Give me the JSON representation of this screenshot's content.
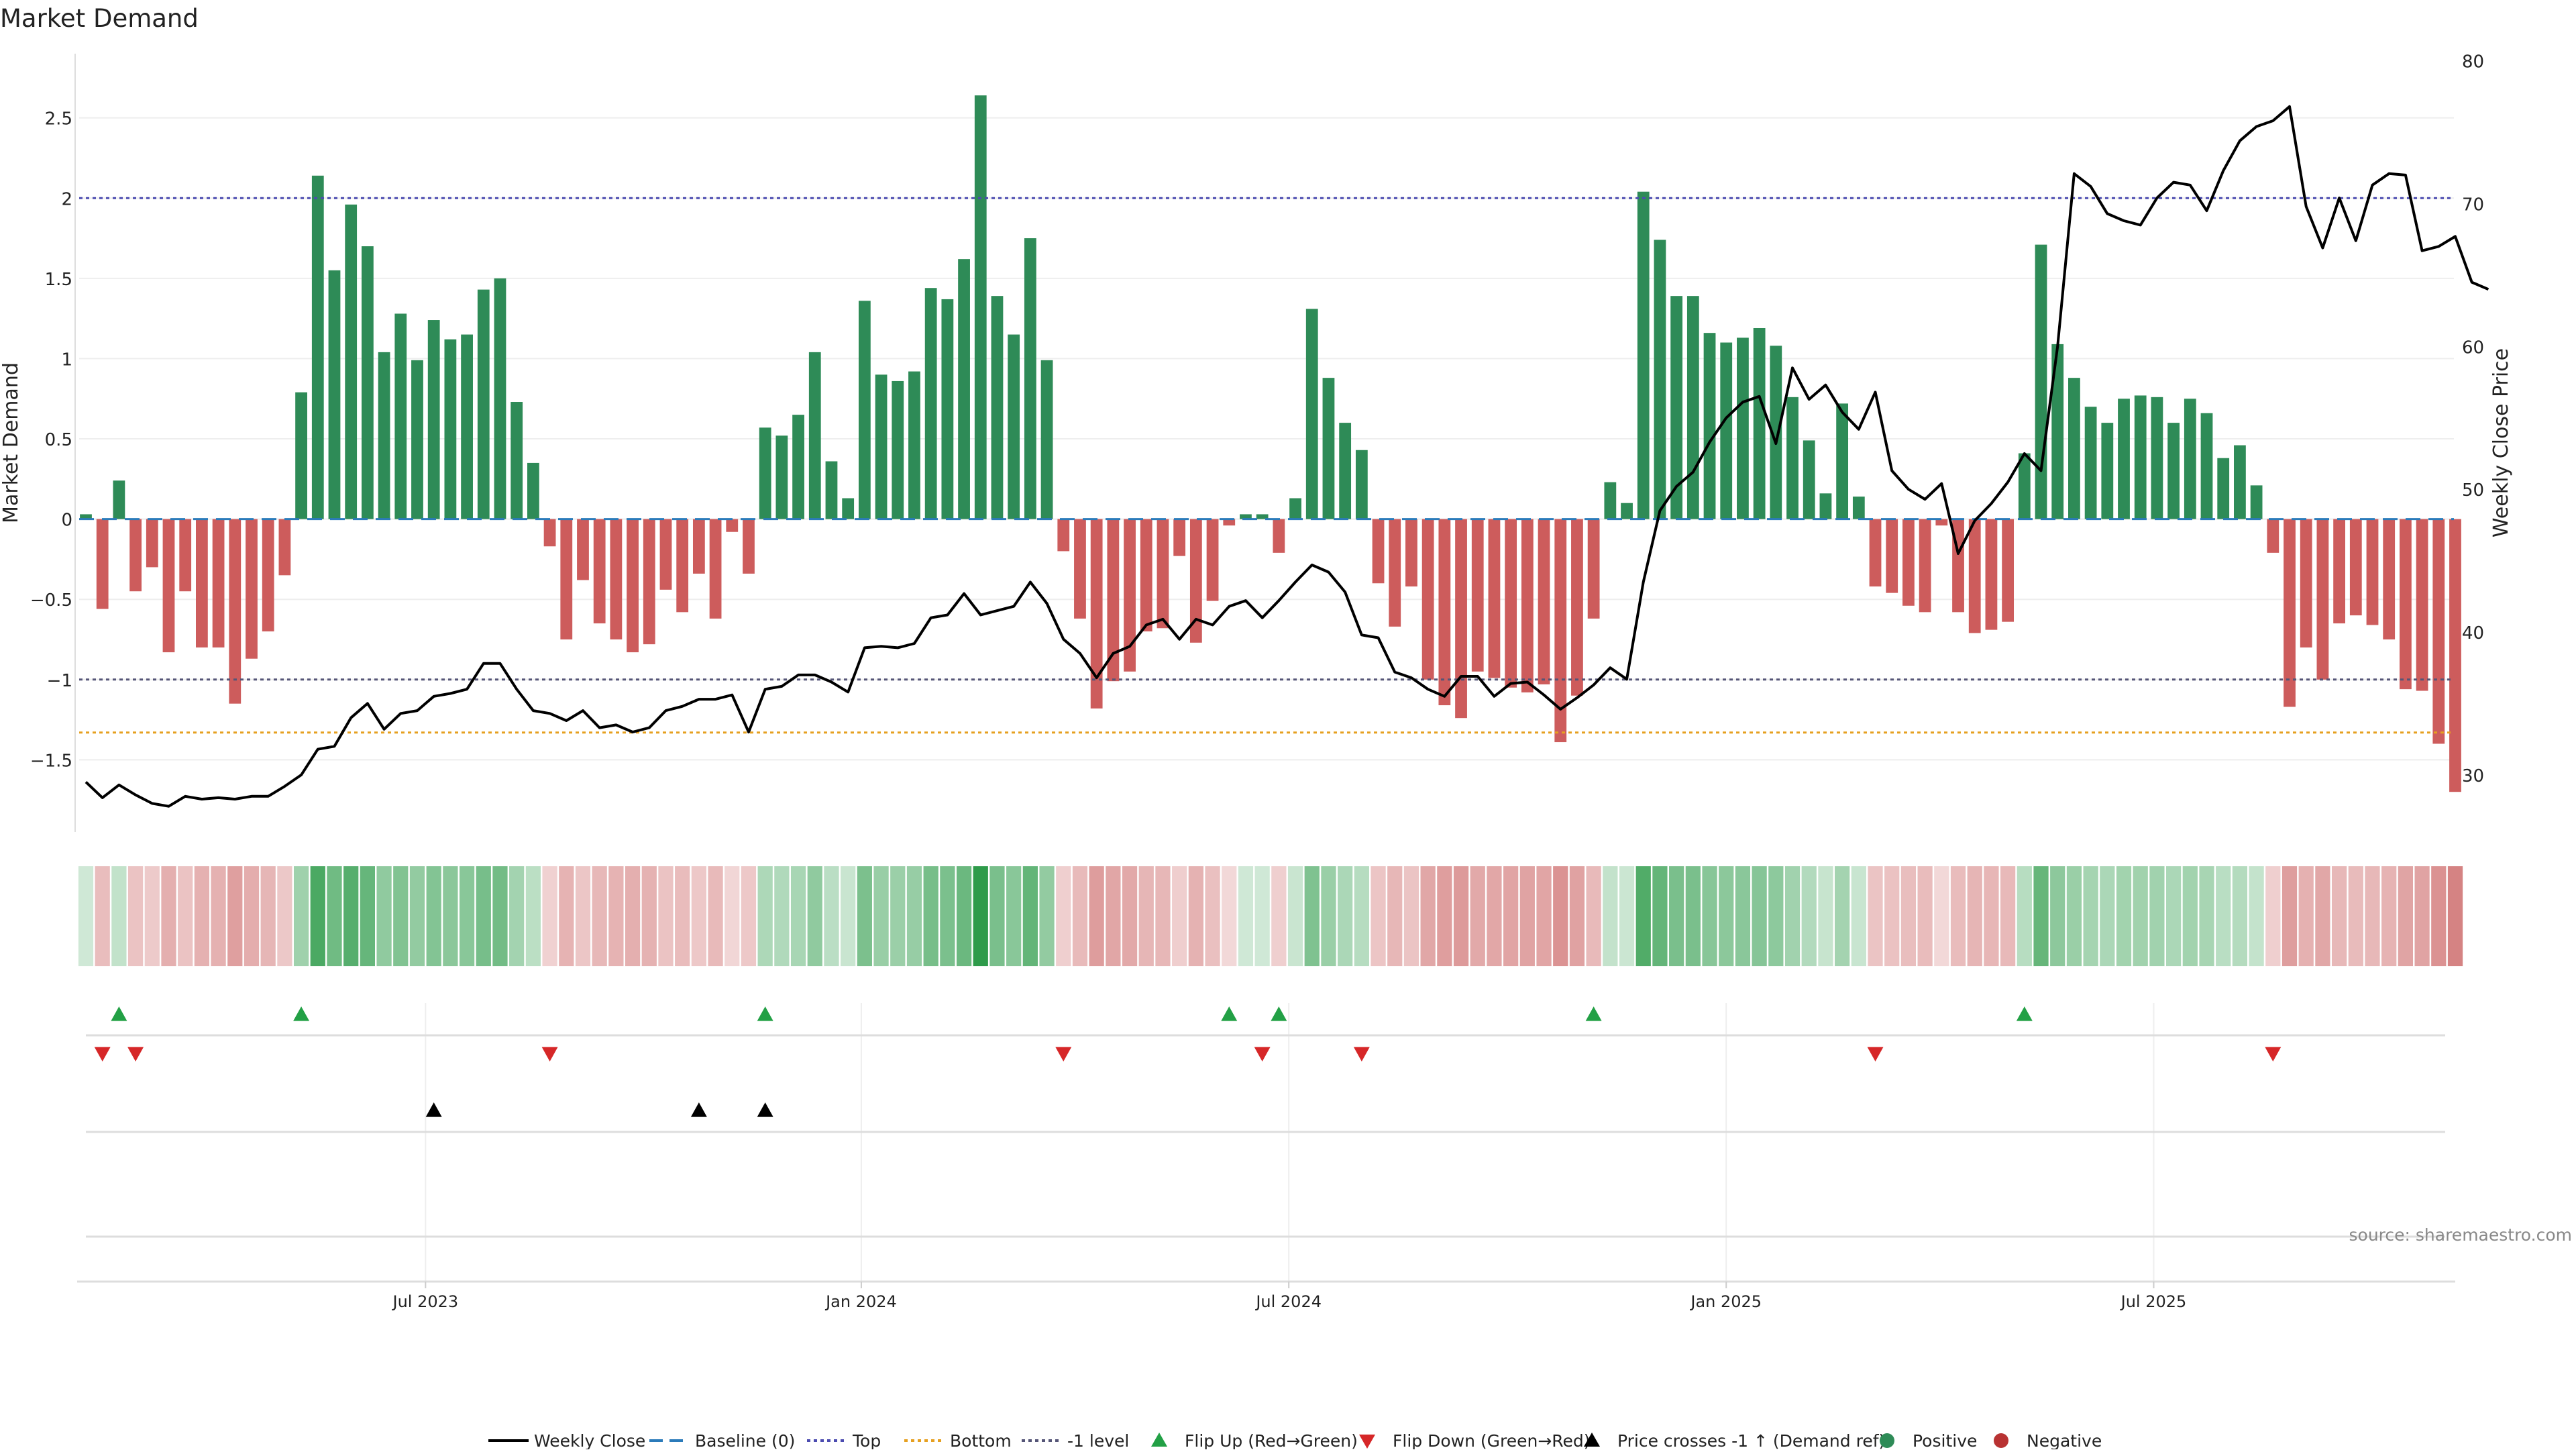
{
  "chart_data": {
    "type": "bar",
    "title": "Market Demand",
    "ylabel_left": "Market Demand",
    "ylabel_right": "Weekly Close Price",
    "source_note": "source: sharemaestro.com",
    "y_left_range": [
      -1.95,
      2.9
    ],
    "y_right_range": [
      26,
      80.5
    ],
    "y_left_ticks": [
      {
        "v": 2.5,
        "label": "2.5"
      },
      {
        "v": 2,
        "label": "2"
      },
      {
        "v": 1.5,
        "label": "1.5"
      },
      {
        "v": 1,
        "label": "1"
      },
      {
        "v": 0.5,
        "label": "0.5"
      },
      {
        "v": 0,
        "label": "0"
      },
      {
        "v": -0.5,
        "label": "−0.5"
      },
      {
        "v": -1,
        "label": "−1"
      },
      {
        "v": -1.5,
        "label": "−1.5"
      }
    ],
    "y_right_ticks": [
      {
        "v": 80,
        "label": "80"
      },
      {
        "v": 70,
        "label": "70"
      },
      {
        "v": 60,
        "label": "60"
      },
      {
        "v": 50,
        "label": "50"
      },
      {
        "v": 40,
        "label": "40"
      },
      {
        "v": 30,
        "label": "30"
      }
    ],
    "x_ticks": [
      {
        "i": 20.5,
        "label": "Jul 2023"
      },
      {
        "i": 46.8,
        "label": "Jan 2024"
      },
      {
        "i": 72.6,
        "label": "Jul 2024"
      },
      {
        "i": 99.0,
        "label": "Jan 2025"
      },
      {
        "i": 124.8,
        "label": "Jul 2025"
      }
    ],
    "reference_lines": {
      "top": 2.0,
      "minus_one": -1.0,
      "bottom": -1.33,
      "baseline": 0
    },
    "colors": {
      "positive": "#2e8b57",
      "negative": "#cd5c5c",
      "price_line": "#000000",
      "top_line": "#4b4bb0",
      "bottom_line": "#e6a020",
      "minus_one_line": "#555577",
      "baseline": "#2b7bba",
      "flip_up": "#22a045",
      "flip_down": "#d62728",
      "cross_marker": "#000000"
    },
    "demand": [
      0.03,
      -0.56,
      0.24,
      -0.45,
      -0.3,
      -0.83,
      -0.45,
      -0.8,
      -0.8,
      -1.15,
      -0.87,
      -0.7,
      -0.35,
      0.79,
      2.14,
      1.55,
      1.96,
      1.7,
      1.04,
      1.28,
      0.99,
      1.24,
      1.12,
      1.15,
      1.43,
      1.5,
      0.73,
      0.35,
      -0.17,
      -0.75,
      -0.38,
      -0.65,
      -0.75,
      -0.83,
      -0.78,
      -0.44,
      -0.58,
      -0.34,
      -0.62,
      -0.08,
      -0.34,
      0.57,
      0.52,
      0.65,
      1.04,
      0.36,
      0.13,
      1.36,
      0.9,
      0.86,
      0.92,
      1.44,
      1.37,
      1.62,
      2.64,
      1.39,
      1.15,
      1.75,
      0.99,
      -0.2,
      -0.62,
      -1.18,
      -1.01,
      -0.95,
      -0.7,
      -0.68,
      -0.23,
      -0.77,
      -0.51,
      -0.04,
      0.03,
      0.03,
      -0.21,
      0.13,
      1.31,
      0.88,
      0.6,
      0.43,
      -0.4,
      -0.67,
      -0.42,
      -1.0,
      -1.16,
      -1.24,
      -0.95,
      -0.99,
      -1.05,
      -1.08,
      -1.03,
      -1.39,
      -1.1,
      -0.62,
      0.23,
      0.1,
      2.04,
      1.74,
      1.39,
      1.39,
      1.16,
      1.1,
      1.13,
      1.19,
      1.08,
      0.76,
      0.49,
      0.16,
      0.72,
      0.14,
      -0.42,
      -0.46,
      -0.54,
      -0.58,
      -0.04,
      -0.58,
      -0.71,
      -0.69,
      -0.64,
      0.41,
      1.71,
      1.09,
      0.88,
      0.7,
      0.6,
      0.75,
      0.77,
      0.76,
      0.6,
      0.75,
      0.66,
      0.38,
      0.46,
      0.21,
      -0.21,
      -1.17,
      -0.8,
      -1.0,
      -0.65,
      -0.6,
      -0.66,
      -0.75,
      -1.06,
      -1.07,
      -1.4,
      -1.7
    ],
    "price": [
      29.5,
      28.4,
      29.3,
      28.6,
      28.0,
      27.8,
      28.5,
      28.3,
      28.4,
      28.3,
      28.5,
      28.5,
      29.2,
      30.0,
      31.8,
      32.0,
      34.0,
      35.0,
      33.2,
      34.3,
      34.5,
      35.5,
      35.7,
      36.0,
      37.8,
      37.8,
      36.0,
      34.5,
      34.3,
      33.8,
      34.5,
      33.3,
      33.5,
      33.0,
      33.3,
      34.5,
      34.8,
      35.3,
      35.3,
      35.6,
      33.0,
      36.0,
      36.2,
      37.0,
      37.0,
      36.5,
      35.8,
      38.9,
      39.0,
      38.9,
      39.2,
      41.0,
      41.2,
      42.7,
      41.2,
      41.5,
      41.8,
      43.5,
      42.0,
      39.5,
      38.5,
      36.8,
      38.5,
      39.0,
      40.5,
      40.9,
      39.5,
      40.9,
      40.5,
      41.8,
      42.2,
      41.0,
      42.2,
      43.5,
      44.7,
      44.2,
      42.8,
      39.8,
      39.6,
      37.2,
      36.8,
      36.0,
      35.5,
      36.9,
      36.9,
      35.5,
      36.4,
      36.5,
      35.6,
      34.6,
      35.4,
      36.3,
      37.5,
      36.7,
      43.5,
      48.5,
      50.2,
      51.2,
      53.3,
      55.0,
      56.1,
      56.5,
      53.2,
      58.5,
      56.3,
      57.3,
      55.4,
      54.2,
      56.8,
      51.3,
      50.0,
      49.3,
      50.4,
      45.5,
      47.8,
      49.0,
      50.5,
      52.5,
      51.3,
      60.0,
      72.1,
      71.2,
      69.3,
      68.8,
      68.5,
      70.4,
      71.5,
      71.3,
      69.5,
      72.3,
      74.4,
      75.4,
      75.8,
      76.8,
      69.8,
      66.9,
      70.4,
      67.4,
      71.3,
      72.1,
      72.0,
      66.7,
      67.0,
      67.7,
      64.5,
      64.0
    ],
    "flip_up_idx": [
      2,
      13,
      41,
      69,
      72,
      91,
      117
    ],
    "flip_down_idx": [
      1,
      3,
      28,
      59,
      71,
      77,
      108,
      132
    ],
    "cross_idx": [
      21,
      37,
      41
    ],
    "legend": [
      {
        "key": "weekly_close",
        "label": "Weekly Close",
        "kind": "line",
        "color": "#000000"
      },
      {
        "key": "baseline",
        "label": "Baseline (0)",
        "kind": "dash",
        "color": "#2b7bba"
      },
      {
        "key": "top",
        "label": "Top",
        "kind": "dot",
        "color": "#4b4bb0"
      },
      {
        "key": "bottom",
        "label": "Bottom",
        "kind": "dot",
        "color": "#e6a020"
      },
      {
        "key": "minus_one",
        "label": "-1 level",
        "kind": "dot",
        "color": "#555577"
      },
      {
        "key": "flip_up",
        "label": "Flip Up (Red→Green)",
        "kind": "tri-up",
        "color": "#22a045"
      },
      {
        "key": "flip_down",
        "label": "Flip Down (Green→Red)",
        "kind": "tri-down",
        "color": "#d62728"
      },
      {
        "key": "cross",
        "label": "Price crosses -1 ↑ (Demand ref)",
        "kind": "tri-up",
        "color": "#000000"
      },
      {
        "key": "positive",
        "label": "Positive",
        "kind": "dot-marker",
        "color": "#2e8b57"
      },
      {
        "key": "negative",
        "label": "Negative",
        "kind": "dot-marker",
        "color": "#b83232"
      }
    ]
  }
}
